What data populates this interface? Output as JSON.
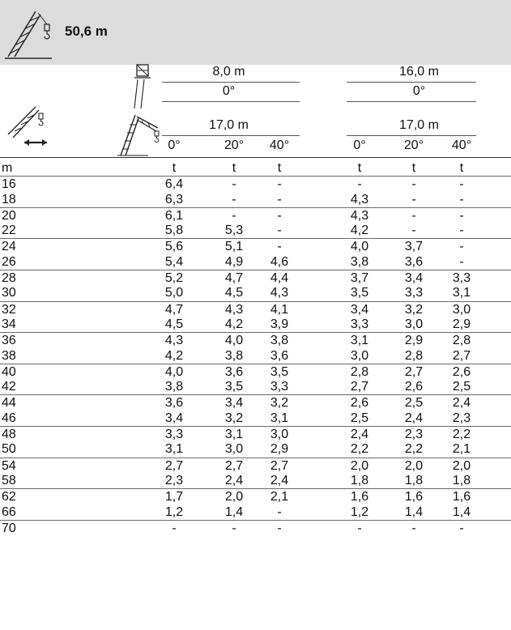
{
  "header": {
    "title": "50,6 m"
  },
  "columns": {
    "group1": {
      "jib_length": "8,0 m",
      "jib_offset": "0°",
      "boom": "17,0 m",
      "angles": [
        "0°",
        "20°",
        "40°"
      ]
    },
    "group2": {
      "jib_length": "16,0 m",
      "jib_offset": "0°",
      "boom": "17,0 m",
      "angles": [
        "0°",
        "20°",
        "40°"
      ]
    }
  },
  "units": {
    "radius": "m",
    "load": "t"
  },
  "rows": [
    {
      "r": "16",
      "v": [
        "6,4",
        "-",
        "-",
        "-",
        "-",
        "-"
      ]
    },
    {
      "r": "18",
      "v": [
        "6,3",
        "-",
        "-",
        "4,3",
        "-",
        "-"
      ]
    },
    {
      "r": "20",
      "v": [
        "6,1",
        "-",
        "-",
        "4,3",
        "-",
        "-"
      ]
    },
    {
      "r": "22",
      "v": [
        "5,8",
        "5,3",
        "-",
        "4,2",
        "-",
        "-"
      ]
    },
    {
      "r": "24",
      "v": [
        "5,6",
        "5,1",
        "-",
        "4,0",
        "3,7",
        "-"
      ]
    },
    {
      "r": "26",
      "v": [
        "5,4",
        "4,9",
        "4,6",
        "3,8",
        "3,6",
        "-"
      ]
    },
    {
      "r": "28",
      "v": [
        "5,2",
        "4,7",
        "4,4",
        "3,7",
        "3,4",
        "3,3"
      ]
    },
    {
      "r": "30",
      "v": [
        "5,0",
        "4,5",
        "4,3",
        "3,5",
        "3,3",
        "3,1"
      ]
    },
    {
      "r": "32",
      "v": [
        "4,7",
        "4,3",
        "4,1",
        "3,4",
        "3,2",
        "3,0"
      ]
    },
    {
      "r": "34",
      "v": [
        "4,5",
        "4,2",
        "3,9",
        "3,3",
        "3,0",
        "2,9"
      ]
    },
    {
      "r": "36",
      "v": [
        "4,3",
        "4,0",
        "3,8",
        "3,1",
        "2,9",
        "2,8"
      ]
    },
    {
      "r": "38",
      "v": [
        "4,2",
        "3,8",
        "3,6",
        "3,0",
        "2,8",
        "2,7"
      ]
    },
    {
      "r": "40",
      "v": [
        "4,0",
        "3,6",
        "3,5",
        "2,8",
        "2,7",
        "2,6"
      ]
    },
    {
      "r": "42",
      "v": [
        "3,8",
        "3,5",
        "3,3",
        "2,7",
        "2,6",
        "2,5"
      ]
    },
    {
      "r": "44",
      "v": [
        "3,6",
        "3,4",
        "3,2",
        "2,6",
        "2,5",
        "2,4"
      ]
    },
    {
      "r": "46",
      "v": [
        "3,4",
        "3,2",
        "3,1",
        "2,5",
        "2,4",
        "2,3"
      ]
    },
    {
      "r": "48",
      "v": [
        "3,3",
        "3,1",
        "3,0",
        "2,4",
        "2,3",
        "2,2"
      ]
    },
    {
      "r": "50",
      "v": [
        "3,1",
        "3,0",
        "2,9",
        "2,2",
        "2,2",
        "2,1"
      ]
    },
    {
      "r": "54",
      "v": [
        "2,7",
        "2,7",
        "2,7",
        "2,0",
        "2,0",
        "2,0"
      ]
    },
    {
      "r": "58",
      "v": [
        "2,3",
        "2,4",
        "2,4",
        "1,8",
        "1,8",
        "1,8"
      ]
    },
    {
      "r": "62",
      "v": [
        "1,7",
        "2,0",
        "2,1",
        "1,6",
        "1,6",
        "1,6"
      ]
    },
    {
      "r": "66",
      "v": [
        "1,2",
        "1,4",
        "-",
        "1,2",
        "1,4",
        "1,4"
      ]
    },
    {
      "r": "70",
      "v": [
        "-",
        "-",
        "-",
        "-",
        "-",
        "-"
      ]
    }
  ]
}
